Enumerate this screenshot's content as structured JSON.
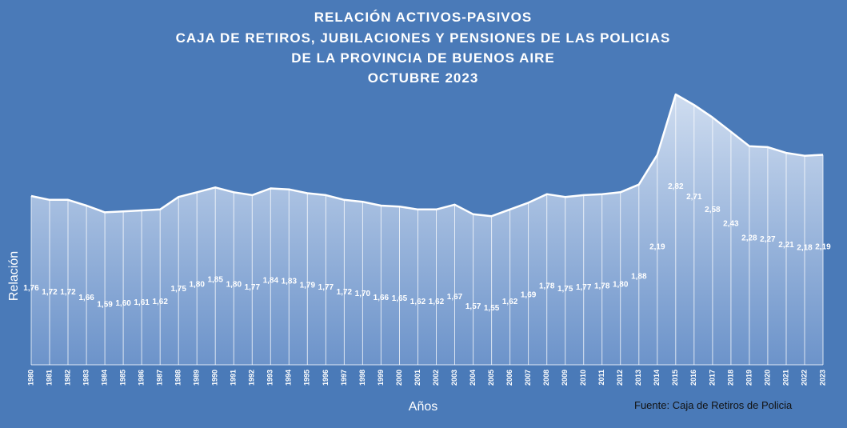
{
  "chart_data": {
    "type": "area",
    "title": [
      "RELACIÓN ACTIVOS-PASIVOS",
      "CAJA DE RETIROS, JUBILACIONES Y PENSIONES DE LAS POLICIAS",
      "DE LA PROVINCIA DE BUENOS AIRE",
      "OCTUBRE 2023"
    ],
    "xlabel": "Años",
    "ylabel": "Relación",
    "source": "Fuente: Caja de Retiros de Policia",
    "categories": [
      "1980",
      "1981",
      "1982",
      "1983",
      "1984",
      "1985",
      "1986",
      "1987",
      "1988",
      "1989",
      "1990",
      "1991",
      "1992",
      "1993",
      "1994",
      "1995",
      "1996",
      "1997",
      "1998",
      "1999",
      "2000",
      "2001",
      "2002",
      "2003",
      "2004",
      "2005",
      "2006",
      "2007",
      "2008",
      "2009",
      "2010",
      "2011",
      "2012",
      "2013",
      "2014",
      "2015",
      "2016",
      "2017",
      "2018",
      "2019",
      "2020",
      "2021",
      "2022",
      "2023"
    ],
    "values": [
      1.76,
      1.72,
      1.72,
      1.66,
      1.59,
      1.6,
      1.61,
      1.62,
      1.75,
      1.8,
      1.85,
      1.8,
      1.77,
      1.84,
      1.83,
      1.79,
      1.77,
      1.72,
      1.7,
      1.66,
      1.65,
      1.62,
      1.62,
      1.67,
      1.57,
      1.55,
      1.62,
      1.69,
      1.78,
      1.75,
      1.77,
      1.78,
      1.8,
      1.88,
      2.19,
      2.82,
      2.71,
      2.58,
      2.43,
      2.28,
      2.27,
      2.21,
      2.18,
      2.19
    ],
    "value_labels": [
      "1,76",
      "1,72",
      "1,72",
      "1,66",
      "1,59",
      "1,60",
      "1,61",
      "1,62",
      "1,75",
      "1,80",
      "1,85",
      "1,80",
      "1,77",
      "1,84",
      "1,83",
      "1,79",
      "1,77",
      "1,72",
      "1,70",
      "1,66",
      "1,65",
      "1,62",
      "1,62",
      "1,67",
      "1,57",
      "1,55",
      "1,62",
      "1,69",
      "1,78",
      "1,75",
      "1,77",
      "1,78",
      "1,80",
      "1,88",
      "2,19",
      "2,82",
      "2,71",
      "2,58",
      "2,43",
      "2,28",
      "2,27",
      "2,21",
      "2,18",
      "2,19"
    ],
    "grid": false,
    "legend": "none",
    "colors": {
      "background": "#4a7ab8",
      "area_top": "#d6e2f3",
      "area_bottom": "#7096cc",
      "line": "#ffffff",
      "text": "#ffffff",
      "source_text": "#111111"
    }
  }
}
